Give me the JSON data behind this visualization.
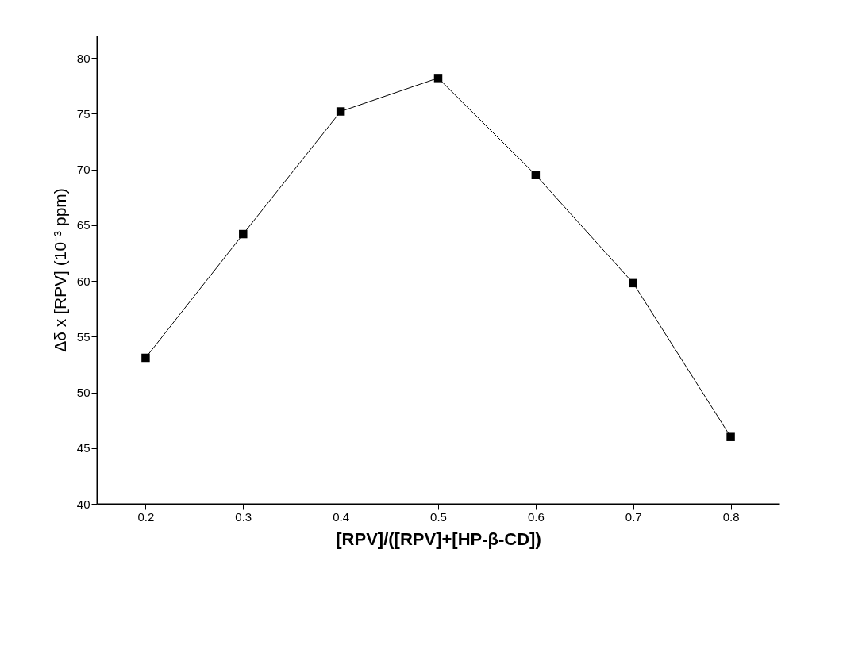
{
  "chart_data": {
    "type": "line",
    "xlabel": "[RPV]/([RPV]+[HP-β-CD])",
    "ylabel": "Δδ x [RPV]  (10⁻³ ppm)",
    "x": [
      0.2,
      0.3,
      0.4,
      0.5,
      0.6,
      0.7,
      0.8
    ],
    "series": [
      {
        "color": "#000000",
        "values": [
          53.1,
          64.2,
          75.2,
          78.2,
          69.5,
          59.8,
          46.0
        ]
      }
    ],
    "xlim": [
      0.15,
      0.85
    ],
    "xticks": [
      0.2,
      0.3,
      0.4,
      0.5,
      0.6,
      0.7,
      0.8
    ],
    "ylim": [
      40,
      82
    ],
    "yticks": [
      40,
      45,
      50,
      55,
      60,
      65,
      70,
      75,
      80
    ],
    "grid": false,
    "marker": "square",
    "line_style": "solid"
  }
}
